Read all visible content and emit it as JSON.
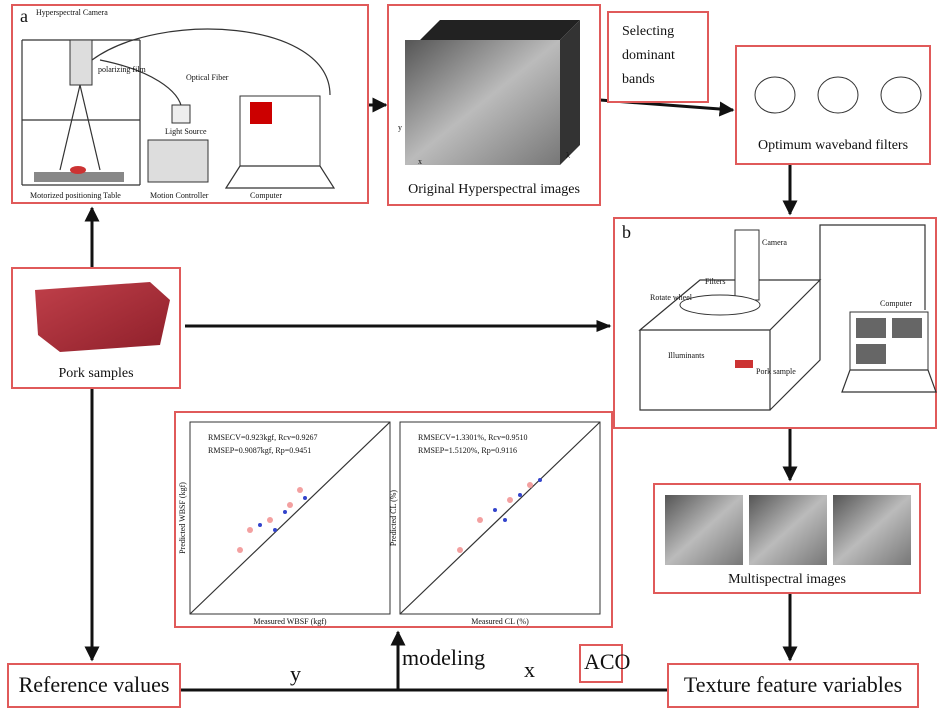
{
  "panel_a": {
    "label": "a",
    "camera": "Hyperspectral Camera",
    "film": "polarizing film",
    "fiber": "Optical Fiber",
    "light": "Light Source",
    "table": "Motorized positioning Table",
    "controller": "Motion Controller",
    "computer": "Computer"
  },
  "hyperspectral": {
    "caption": "Original Hyperspectral images",
    "x": "x",
    "y": "y",
    "lambda": "λ"
  },
  "selecting": [
    "Selecting",
    "dominant",
    "bands"
  ],
  "filters": {
    "caption": "Optimum waveband filters"
  },
  "panel_b": {
    "label": "b",
    "camera": "Camera",
    "filters": "Filters",
    "wheel": "Rotate wheel",
    "illuminants": "Illuminants",
    "sample": "Pork sample",
    "computer": "Computer"
  },
  "pork": {
    "caption": "Pork samples"
  },
  "models": [
    {
      "legend": [
        "RMSECV=0.923kgf, Rcv=0.9267",
        "RMSEP=0.9087kgf, Rp=0.9451"
      ],
      "ylabel": "Predicted WBSF (kgf)",
      "xlabel": "Measured WBSF (kgf)"
    },
    {
      "legend": [
        "RMSECV=1.3301%, Rcv=0.9510",
        "RMSEP=1.5120%, Rp=0.9116"
      ],
      "ylabel": "Predicted CL (%)",
      "xlabel": "Measured CL (%)"
    }
  ],
  "multispectral": {
    "caption": "Multispectral images"
  },
  "reference": "Reference values",
  "texture": "Texture feature variables",
  "flow": {
    "y": "y",
    "modeling": "modeling",
    "x": "x",
    "aco": "ACO"
  }
}
